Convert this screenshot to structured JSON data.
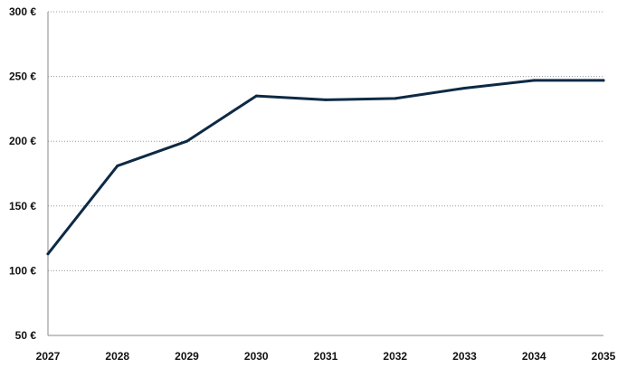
{
  "chart_data": {
    "type": "line",
    "x": [
      "2027",
      "2028",
      "2029",
      "2030",
      "2031",
      "2032",
      "2033",
      "2034",
      "2035"
    ],
    "series": [
      {
        "values": [
          113,
          181,
          200,
          235,
          232,
          233,
          241,
          247,
          247
        ]
      }
    ],
    "ylim": [
      50,
      300
    ],
    "yticks": [
      50,
      100,
      150,
      200,
      250,
      300
    ],
    "ytick_labels": [
      "50 €",
      "100 €",
      "150 €",
      "200 €",
      "250 €",
      "300 €"
    ],
    "xtick_labels": [
      "2027",
      "2028",
      "2029",
      "2030",
      "2031",
      "2032",
      "2033",
      "2034",
      "2035"
    ],
    "grid": true,
    "colors": {
      "line": "#0d2a45"
    }
  }
}
